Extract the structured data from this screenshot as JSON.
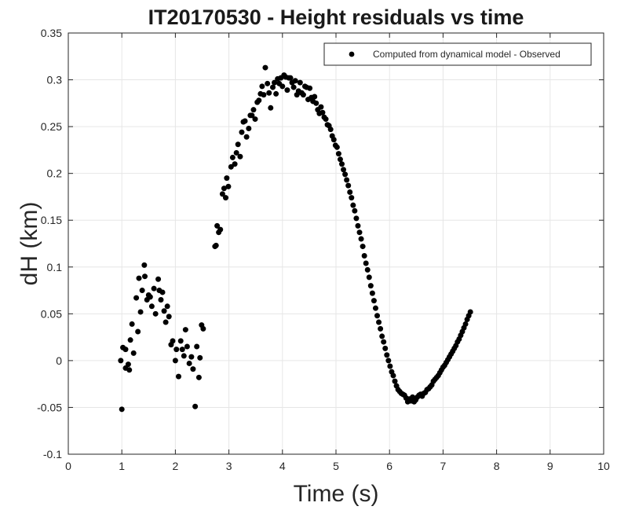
{
  "chart_data": {
    "type": "scatter",
    "title": "IT20170530 - Height residuals vs time",
    "xlabel": "Time (s)",
    "ylabel": "dH (km)",
    "xlim": [
      0,
      10
    ],
    "ylim": [
      -0.1,
      0.35
    ],
    "xticks": [
      "0",
      "1",
      "2",
      "3",
      "4",
      "5",
      "6",
      "7",
      "8",
      "9",
      "10"
    ],
    "yticks": [
      "-0.1",
      "-0.05",
      "0",
      "0.05",
      "0.1",
      "0.15",
      "0.2",
      "0.25",
      "0.3",
      "0.35"
    ],
    "grid": true,
    "legend_position": "top-right",
    "series": [
      {
        "name": "Computed from dynamical model - Observed",
        "color": "#000000",
        "marker": "filled-circle",
        "points": [
          [
            0.98,
            0.0
          ],
          [
            1.0,
            -0.052
          ],
          [
            1.02,
            0.014
          ],
          [
            1.07,
            0.012
          ],
          [
            1.07,
            -0.008
          ],
          [
            1.12,
            -0.004
          ],
          [
            1.14,
            -0.01
          ],
          [
            1.16,
            0.022
          ],
          [
            1.19,
            0.039
          ],
          [
            1.22,
            0.008
          ],
          [
            1.27,
            0.067
          ],
          [
            1.3,
            0.031
          ],
          [
            1.32,
            0.088
          ],
          [
            1.35,
            0.052
          ],
          [
            1.38,
            0.075
          ],
          [
            1.42,
            0.102
          ],
          [
            1.43,
            0.09
          ],
          [
            1.47,
            0.065
          ],
          [
            1.5,
            0.07
          ],
          [
            1.53,
            0.068
          ],
          [
            1.56,
            0.058
          ],
          [
            1.6,
            0.077
          ],
          [
            1.63,
            0.05
          ],
          [
            1.68,
            0.087
          ],
          [
            1.7,
            0.075
          ],
          [
            1.73,
            0.065
          ],
          [
            1.76,
            0.073
          ],
          [
            1.79,
            0.053
          ],
          [
            1.82,
            0.041
          ],
          [
            1.85,
            0.058
          ],
          [
            1.88,
            0.047
          ],
          [
            1.92,
            0.017
          ],
          [
            1.95,
            0.021
          ],
          [
            2.0,
            0.0
          ],
          [
            2.02,
            0.012
          ],
          [
            2.06,
            -0.017
          ],
          [
            2.1,
            0.021
          ],
          [
            2.13,
            0.012
          ],
          [
            2.16,
            0.005
          ],
          [
            2.19,
            0.033
          ],
          [
            2.22,
            0.015
          ],
          [
            2.26,
            -0.003
          ],
          [
            2.3,
            0.004
          ],
          [
            2.33,
            -0.009
          ],
          [
            2.37,
            -0.049
          ],
          [
            2.4,
            0.015
          ],
          [
            2.44,
            -0.018
          ],
          [
            2.46,
            0.003
          ],
          [
            2.49,
            0.038
          ],
          [
            2.52,
            0.034
          ],
          [
            2.74,
            0.122
          ],
          [
            2.76,
            0.123
          ],
          [
            2.78,
            0.144
          ],
          [
            2.81,
            0.137
          ],
          [
            2.84,
            0.14
          ],
          [
            2.88,
            0.178
          ],
          [
            2.91,
            0.184
          ],
          [
            2.94,
            0.174
          ],
          [
            2.96,
            0.195
          ],
          [
            2.99,
            0.186
          ],
          [
            3.04,
            0.207
          ],
          [
            3.07,
            0.217
          ],
          [
            3.11,
            0.21
          ],
          [
            3.14,
            0.222
          ],
          [
            3.17,
            0.231
          ],
          [
            3.21,
            0.218
          ],
          [
            3.24,
            0.244
          ],
          [
            3.27,
            0.255
          ],
          [
            3.3,
            0.256
          ],
          [
            3.33,
            0.239
          ],
          [
            3.37,
            0.248
          ],
          [
            3.4,
            0.262
          ],
          [
            3.43,
            0.262
          ],
          [
            3.46,
            0.268
          ],
          [
            3.49,
            0.258
          ],
          [
            3.53,
            0.276
          ],
          [
            3.56,
            0.278
          ],
          [
            3.59,
            0.285
          ],
          [
            3.62,
            0.293
          ],
          [
            3.65,
            0.284
          ],
          [
            3.68,
            0.313
          ],
          [
            3.72,
            0.296
          ],
          [
            3.75,
            0.286
          ],
          [
            3.78,
            0.27
          ],
          [
            3.82,
            0.292
          ],
          [
            3.85,
            0.297
          ],
          [
            3.88,
            0.285
          ],
          [
            3.91,
            0.301
          ],
          [
            3.94,
            0.296
          ],
          [
            3.97,
            0.302
          ],
          [
            4.0,
            0.293
          ],
          [
            4.03,
            0.305
          ],
          [
            4.06,
            0.303
          ],
          [
            4.09,
            0.289
          ],
          [
            4.12,
            0.302
          ],
          [
            4.15,
            0.302
          ],
          [
            4.18,
            0.297
          ],
          [
            4.21,
            0.292
          ],
          [
            4.24,
            0.299
          ],
          [
            4.27,
            0.284
          ],
          [
            4.3,
            0.288
          ],
          [
            4.33,
            0.297
          ],
          [
            4.36,
            0.286
          ],
          [
            4.39,
            0.284
          ],
          [
            4.42,
            0.293
          ],
          [
            4.45,
            0.292
          ],
          [
            4.48,
            0.279
          ],
          [
            4.51,
            0.291
          ],
          [
            4.54,
            0.281
          ],
          [
            4.57,
            0.277
          ],
          [
            4.6,
            0.282
          ],
          [
            4.63,
            0.275
          ],
          [
            4.66,
            0.268
          ],
          [
            4.69,
            0.264
          ],
          [
            4.72,
            0.271
          ],
          [
            4.75,
            0.265
          ],
          [
            4.78,
            0.26
          ],
          [
            4.81,
            0.258
          ],
          [
            4.84,
            0.252
          ],
          [
            4.87,
            0.251
          ],
          [
            4.9,
            0.247
          ],
          [
            4.93,
            0.24
          ],
          [
            4.96,
            0.236
          ],
          [
            4.99,
            0.23
          ],
          [
            5.02,
            0.228
          ],
          [
            5.05,
            0.221
          ],
          [
            5.08,
            0.215
          ],
          [
            5.11,
            0.21
          ],
          [
            5.14,
            0.204
          ],
          [
            5.17,
            0.199
          ],
          [
            5.2,
            0.193
          ],
          [
            5.23,
            0.187
          ],
          [
            5.26,
            0.18
          ],
          [
            5.29,
            0.174
          ],
          [
            5.32,
            0.166
          ],
          [
            5.35,
            0.16
          ],
          [
            5.38,
            0.152
          ],
          [
            5.41,
            0.144
          ],
          [
            5.44,
            0.137
          ],
          [
            5.47,
            0.13
          ],
          [
            5.5,
            0.122
          ],
          [
            5.53,
            0.112
          ],
          [
            5.56,
            0.104
          ],
          [
            5.59,
            0.097
          ],
          [
            5.62,
            0.089
          ],
          [
            5.65,
            0.08
          ],
          [
            5.68,
            0.072
          ],
          [
            5.71,
            0.064
          ],
          [
            5.74,
            0.056
          ],
          [
            5.77,
            0.048
          ],
          [
            5.8,
            0.041
          ],
          [
            5.83,
            0.034
          ],
          [
            5.86,
            0.026
          ],
          [
            5.89,
            0.02
          ],
          [
            5.92,
            0.013
          ],
          [
            5.95,
            0.006
          ],
          [
            5.98,
            0.0
          ],
          [
            6.01,
            -0.006
          ],
          [
            6.04,
            -0.012
          ],
          [
            6.07,
            -0.016
          ],
          [
            6.1,
            -0.022
          ],
          [
            6.13,
            -0.027
          ],
          [
            6.16,
            -0.031
          ],
          [
            6.19,
            -0.033
          ],
          [
            6.22,
            -0.035
          ],
          [
            6.25,
            -0.036
          ],
          [
            6.28,
            -0.037
          ],
          [
            6.31,
            -0.04
          ],
          [
            6.34,
            -0.044
          ],
          [
            6.37,
            -0.041
          ],
          [
            6.4,
            -0.043
          ],
          [
            6.43,
            -0.039
          ],
          [
            6.46,
            -0.044
          ],
          [
            6.49,
            -0.042
          ],
          [
            6.52,
            -0.039
          ],
          [
            6.55,
            -0.037
          ],
          [
            6.58,
            -0.036
          ],
          [
            6.61,
            -0.038
          ],
          [
            6.64,
            -0.035
          ],
          [
            6.67,
            -0.034
          ],
          [
            6.7,
            -0.031
          ],
          [
            6.73,
            -0.03
          ],
          [
            6.76,
            -0.028
          ],
          [
            6.79,
            -0.026
          ],
          [
            6.82,
            -0.022
          ],
          [
            6.85,
            -0.02
          ],
          [
            6.88,
            -0.018
          ],
          [
            6.91,
            -0.016
          ],
          [
            6.94,
            -0.013
          ],
          [
            6.97,
            -0.01
          ],
          [
            7.0,
            -0.007
          ],
          [
            7.03,
            -0.005
          ],
          [
            7.06,
            -0.002
          ],
          [
            7.09,
            0.001
          ],
          [
            7.12,
            0.004
          ],
          [
            7.15,
            0.007
          ],
          [
            7.18,
            0.01
          ],
          [
            7.21,
            0.013
          ],
          [
            7.24,
            0.016
          ],
          [
            7.27,
            0.02
          ],
          [
            7.3,
            0.023
          ],
          [
            7.33,
            0.027
          ],
          [
            7.36,
            0.031
          ],
          [
            7.39,
            0.035
          ],
          [
            7.42,
            0.039
          ],
          [
            7.45,
            0.044
          ],
          [
            7.48,
            0.048
          ],
          [
            7.51,
            0.052
          ]
        ]
      }
    ]
  }
}
